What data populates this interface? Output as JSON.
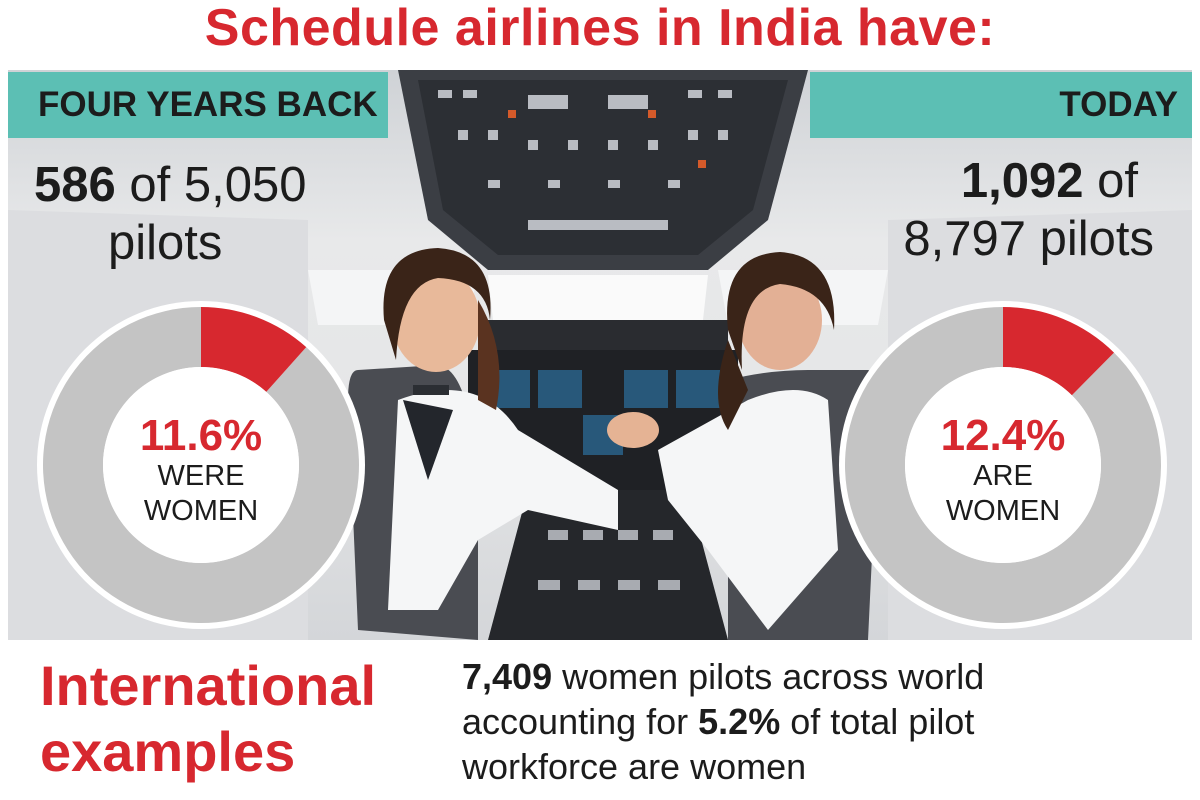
{
  "headline": "Schedule airlines in India have:",
  "colors": {
    "accent_red": "#d7282f",
    "banner_teal": "#5cbfb4",
    "ring_gray": "#c4c4c4",
    "text_dark": "#1c1c1c"
  },
  "icons": {
    "photo": "cockpit-photo-women-pilots"
  },
  "left": {
    "banner": "FOUR YEARS BACK",
    "count_bold": "586",
    "count_rest": " of 5,050",
    "count_line2": "pilots",
    "pct_label": "11.6%",
    "label_line1": "WERE",
    "label_line2": "WOMEN"
  },
  "right": {
    "banner": "TODAY",
    "count_bold": "1,092",
    "count_rest": " of",
    "count_line2": "8,797 pilots",
    "pct_label": "12.4%",
    "label_line1": "ARE",
    "label_line2": "WOMEN"
  },
  "international": {
    "title_line1": "International",
    "title_line2": "examples",
    "bold1": "7,409",
    "text1": " women pilots across world",
    "text2": "accounting for ",
    "bold2": "5.2%",
    "text3": " of total pilot",
    "text4": "workforce are women"
  },
  "chart_data": [
    {
      "type": "pie",
      "title": "FOUR YEARS BACK",
      "categories": [
        "WERE WOMEN",
        ""
      ],
      "values": [
        11.6,
        88.4
      ],
      "women_pilots": 586,
      "total_pilots": 5050,
      "colors": [
        "#d7282f",
        "#c4c4c4"
      ]
    },
    {
      "type": "pie",
      "title": "TODAY",
      "categories": [
        "ARE WOMEN",
        ""
      ],
      "values": [
        12.4,
        87.6
      ],
      "women_pilots": 1092,
      "total_pilots": 8797,
      "colors": [
        "#d7282f",
        "#c4c4c4"
      ]
    }
  ]
}
